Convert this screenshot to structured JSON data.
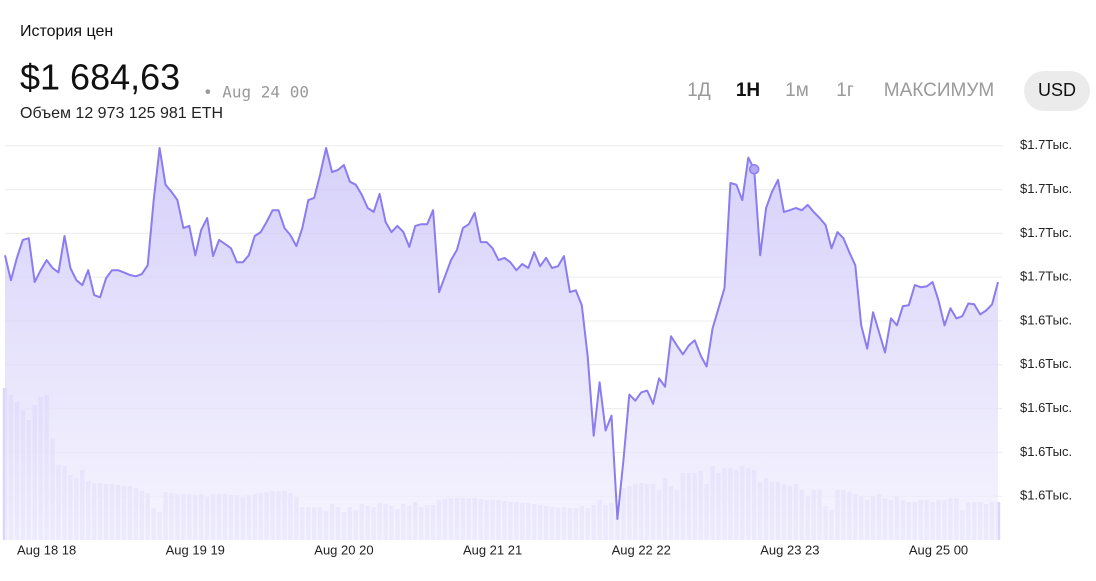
{
  "header": {
    "title": "История цен",
    "price": "$1 684,63",
    "date": "• Aug 24 00",
    "volume": "Объем 12 973 125 981 ETH"
  },
  "controls": {
    "ranges": [
      "1Д",
      "1Н",
      "1м",
      "1г",
      "МАКСИМУМ"
    ],
    "selected_range": 1,
    "currency": "USD"
  },
  "chart_data": {
    "type": "line",
    "categories": [
      null,
      null,
      null,
      null,
      null,
      null,
      null,
      "Aug 18 18",
      null,
      null,
      null,
      null,
      null,
      null,
      null,
      null,
      null,
      null,
      null,
      null,
      null,
      null,
      null,
      null,
      null,
      null,
      null,
      null,
      null,
      null,
      null,
      null,
      "Aug 19 19",
      null,
      null,
      null,
      null,
      null,
      null,
      null,
      null,
      null,
      null,
      null,
      null,
      null,
      null,
      null,
      null,
      null,
      null,
      null,
      null,
      null,
      null,
      null,
      null,
      "Aug 20 20",
      null,
      null,
      null,
      null,
      null,
      null,
      null,
      null,
      null,
      null,
      null,
      null,
      null,
      null,
      null,
      null,
      null,
      null,
      null,
      null,
      null,
      null,
      null,
      null,
      "Aug 21 21",
      null,
      null,
      null,
      null,
      null,
      null,
      null,
      null,
      null,
      null,
      null,
      null,
      null,
      null,
      null,
      null,
      null,
      null,
      null,
      null,
      null,
      null,
      null,
      null,
      "Aug 22 22",
      null,
      null,
      null,
      null,
      null,
      null,
      null,
      null,
      null,
      null,
      null,
      null,
      null,
      null,
      null,
      null,
      null,
      null,
      null,
      null,
      null,
      null,
      null,
      null,
      "Aug 23 23",
      null,
      null,
      null,
      null,
      null,
      null,
      null,
      null,
      null,
      null,
      null,
      null,
      null,
      null,
      null,
      null,
      null,
      null,
      null,
      null,
      null,
      null,
      null,
      null,
      "Aug 25 00",
      null,
      null,
      null,
      null,
      null,
      null,
      null,
      null,
      null,
      null
    ],
    "series": [
      {
        "name": "Price",
        "color": "#8b7cf0",
        "values": [
          1665.0,
          1659.3,
          1664.4,
          1668.5,
          1668.9,
          1658.9,
          1661.6,
          1663.9,
          1662.1,
          1661.1,
          1669.4,
          1662.1,
          1659.3,
          1658.2,
          1661.6,
          1655.9,
          1655.4,
          1659.8,
          1661.6,
          1661.6,
          1661.1,
          1660.5,
          1660.2,
          1660.7,
          1662.7,
          1677.6,
          1689.5,
          1681.1,
          1679.5,
          1677.6,
          1671.2,
          1671.7,
          1665.0,
          1670.8,
          1673.5,
          1664.8,
          1668.5,
          1667.6,
          1666.6,
          1663.4,
          1663.4,
          1665.0,
          1669.4,
          1670.3,
          1672.6,
          1675.3,
          1675.3,
          1671.2,
          1669.6,
          1667.1,
          1671.2,
          1677.6,
          1678.1,
          1683.4,
          1689.5,
          1684.0,
          1684.5,
          1685.6,
          1681.8,
          1681.1,
          1678.8,
          1675.8,
          1674.9,
          1679.0,
          1672.6,
          1670.3,
          1671.7,
          1670.3,
          1666.9,
          1671.7,
          1672.1,
          1672.1,
          1675.3,
          1656.6,
          1660.2,
          1663.9,
          1666.2,
          1671.2,
          1672.1,
          1674.7,
          1668.0,
          1668.0,
          1666.6,
          1663.9,
          1664.4,
          1663.4,
          1661.6,
          1663.0,
          1662.1,
          1665.7,
          1662.5,
          1664.4,
          1662.1,
          1662.5,
          1664.8,
          1656.6,
          1657.0,
          1653.6,
          1641.9,
          1623.8,
          1636.0,
          1625.0,
          1628.4,
          1604.8,
          1618.1,
          1633.2,
          1631.8,
          1633.7,
          1634.1,
          1631.1,
          1636.9,
          1635.0,
          1646.5,
          1644.4,
          1642.4,
          1644.4,
          1645.6,
          1642.1,
          1639.6,
          1648.3,
          1652.9,
          1657.5,
          1681.5,
          1681.1,
          1677.6,
          1687.3,
          1684.63,
          1665.0,
          1675.8,
          1679.5,
          1682.2,
          1674.9,
          1675.3,
          1675.8,
          1675.3,
          1676.5,
          1674.9,
          1673.5,
          1671.9,
          1666.6,
          1670.3,
          1668.9,
          1665.7,
          1662.7,
          1649.0,
          1643.7,
          1652.0,
          1647.4,
          1642.8,
          1650.6,
          1649.0,
          1653.4,
          1653.6,
          1658.2,
          1657.7,
          1657.9,
          1658.9,
          1654.7,
          1649.0,
          1652.9,
          1650.6,
          1651.1,
          1654.0,
          1653.8,
          1651.5,
          1652.4,
          1653.8,
          1658.9
        ]
      },
      {
        "name": "Volume",
        "color": "#dcd7fa",
        "values": [
          152,
          145,
          138,
          130,
          120,
          135,
          143,
          145,
          102,
          75,
          74,
          65,
          62,
          70,
          59,
          57,
          57,
          56,
          56,
          55,
          54,
          54,
          52,
          49,
          47,
          32,
          28,
          48,
          47,
          46,
          46,
          46,
          45,
          46,
          43,
          46,
          46,
          46,
          45,
          45,
          43,
          45,
          46,
          47,
          48,
          49,
          49,
          49,
          47,
          43,
          33,
          33,
          33,
          33,
          29,
          36,
          33,
          28,
          33,
          30,
          36,
          34,
          33,
          37,
          36,
          34,
          31,
          36,
          34,
          38,
          33,
          35,
          35,
          40,
          41,
          42,
          42,
          42,
          42,
          42,
          41,
          40,
          40,
          40,
          39,
          38,
          38,
          37,
          37,
          36,
          35,
          34,
          33,
          32,
          33,
          32,
          32,
          34,
          32,
          35,
          40,
          35,
          37,
          23,
          52,
          54,
          56,
          57,
          56,
          56,
          50,
          62,
          54,
          50,
          67,
          67,
          67,
          69,
          56,
          74,
          67,
          72,
          72,
          70,
          74,
          72,
          70,
          58,
          62,
          58,
          58,
          56,
          54,
          56,
          50,
          44,
          50,
          50,
          34,
          30,
          50,
          50,
          48,
          46,
          44,
          40,
          44,
          46,
          42,
          40,
          44,
          40,
          38,
          38,
          40,
          40,
          38,
          40,
          40,
          42,
          42,
          30,
          38,
          38,
          38,
          36,
          38,
          38
        ]
      }
    ],
    "ylim": [
      1600,
      1692
    ],
    "yticks": [
      {
        "value": 1690,
        "label": "$1.7Тыс."
      },
      {
        "value": 1680,
        "label": "$1.7Тыс."
      },
      {
        "value": 1670,
        "label": "$1.7Тыс."
      },
      {
        "value": 1660,
        "label": "$1.7Тыс."
      },
      {
        "value": 1650,
        "label": "$1.6Тыс."
      },
      {
        "value": 1640,
        "label": "$1.6Тыс."
      },
      {
        "value": 1630,
        "label": "$1.6Тыс."
      },
      {
        "value": 1620,
        "label": "$1.6Тыс."
      },
      {
        "value": 1610,
        "label": "$1.6Тыс."
      }
    ],
    "grid": true,
    "hover_index": 126
  }
}
